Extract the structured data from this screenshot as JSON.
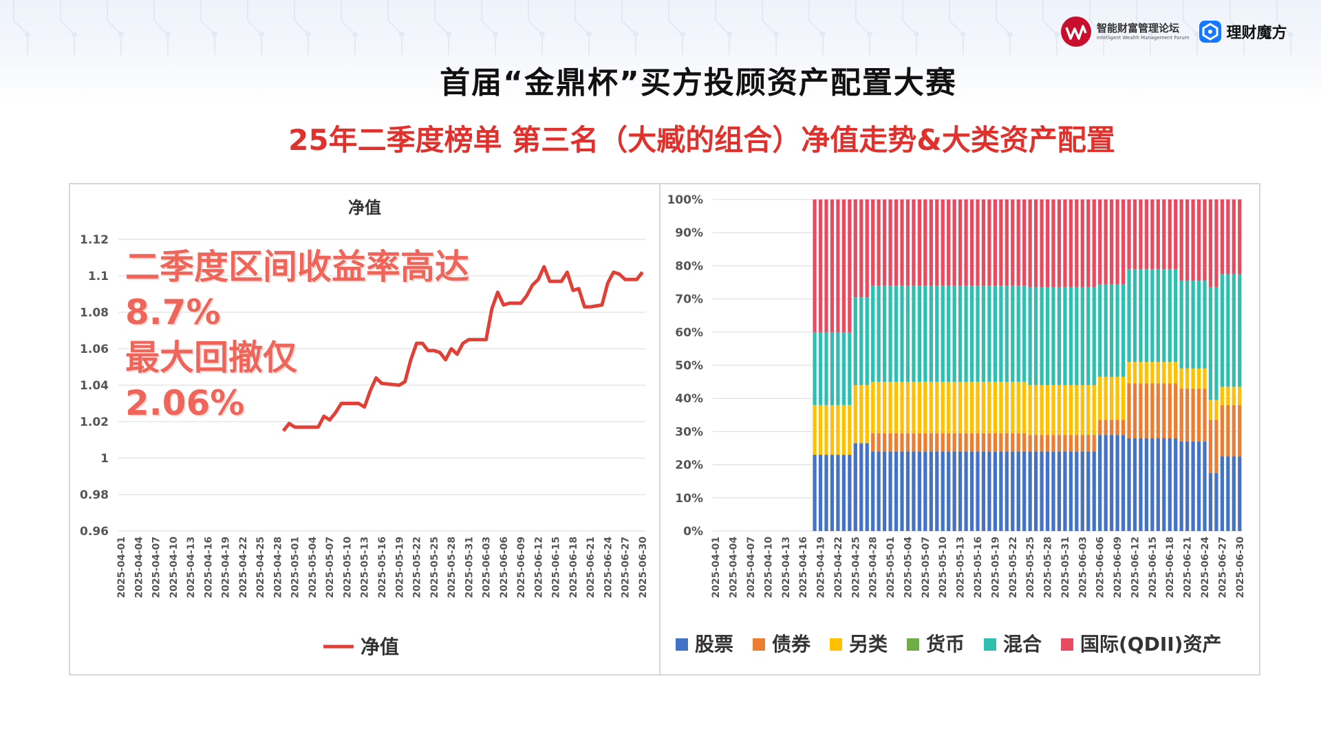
{
  "header": {
    "forum_name": "智能财富管理论坛",
    "forum_name_en": "Intelligent Wealth Management Forum",
    "partner_name": "理财魔方",
    "title": "首届“金鼎杯”买方投顾资产配置大赛",
    "subtitle": "25年二季度榜单 第三名（大臧的组合）净值走势&大类资产配置"
  },
  "colors": {
    "title": "#111111",
    "subtitle": "#e0312c",
    "nav_line": "#e04036",
    "overlay_text": "#f0655a",
    "stock": "#4472c4",
    "bond": "#ed7d31",
    "alternative": "#ffc000",
    "currency": "#70ad47",
    "mixed": "#2fbfb0",
    "qdii": "#e84a5f"
  },
  "overlay": {
    "line1": "二季度区间收益率高达",
    "line2": "8.7%",
    "line3": "最大回撤仅",
    "line4": "2.06%"
  },
  "chart_data": [
    {
      "type": "line",
      "title": "净值",
      "legend": [
        "净值"
      ],
      "legend_position": "bottom",
      "grid": true,
      "ylim": [
        0.96,
        1.12
      ],
      "yticks": [
        "1.12",
        "1.1",
        "1.08",
        "1.06",
        "1.04",
        "1.02",
        "1",
        "0.98",
        "0.96"
      ],
      "xticks": [
        "2025-04-01",
        "2025-04-04",
        "2025-04-07",
        "2025-04-10",
        "2025-04-13",
        "2025-04-16",
        "2025-04-19",
        "2025-04-22",
        "2025-04-25",
        "2025-04-28",
        "2025-05-01",
        "2025-05-04",
        "2025-05-07",
        "2025-05-10",
        "2025-05-13",
        "2025-05-16",
        "2025-05-19",
        "2025-05-22",
        "2025-05-25",
        "2025-05-28",
        "2025-05-31",
        "2025-06-03",
        "2025-06-06",
        "2025-06-09",
        "2025-06-12",
        "2025-06-15",
        "2025-06-18",
        "2025-06-21",
        "2025-06-24",
        "2025-06-27",
        "2025-06-30"
      ],
      "series": [
        {
          "name": "净值",
          "points": [
            [
              "2025-04-29",
              1.015
            ],
            [
              "2025-04-30",
              1.019
            ],
            [
              "2025-05-01",
              1.017
            ],
            [
              "2025-05-04",
              1.017
            ],
            [
              "2025-05-05",
              1.017
            ],
            [
              "2025-05-06",
              1.023
            ],
            [
              "2025-05-07",
              1.021
            ],
            [
              "2025-05-08",
              1.025
            ],
            [
              "2025-05-09",
              1.03
            ],
            [
              "2025-05-12",
              1.03
            ],
            [
              "2025-05-13",
              1.028
            ],
            [
              "2025-05-14",
              1.037
            ],
            [
              "2025-05-15",
              1.044
            ],
            [
              "2025-05-16",
              1.041
            ],
            [
              "2025-05-19",
              1.04
            ],
            [
              "2025-05-20",
              1.042
            ],
            [
              "2025-05-21",
              1.054
            ],
            [
              "2025-05-22",
              1.063
            ],
            [
              "2025-05-23",
              1.063
            ],
            [
              "2025-05-24",
              1.059
            ],
            [
              "2025-05-25",
              1.059
            ],
            [
              "2025-05-26",
              1.058
            ],
            [
              "2025-05-27",
              1.054
            ],
            [
              "2025-05-28",
              1.06
            ],
            [
              "2025-05-29",
              1.057
            ],
            [
              "2025-05-30",
              1.063
            ],
            [
              "2025-05-31",
              1.065
            ],
            [
              "2025-06-01",
              1.065
            ],
            [
              "2025-06-02",
              1.065
            ],
            [
              "2025-06-03",
              1.065
            ],
            [
              "2025-06-04",
              1.082
            ],
            [
              "2025-06-05",
              1.091
            ],
            [
              "2025-06-06",
              1.084
            ],
            [
              "2025-06-07",
              1.085
            ],
            [
              "2025-06-09",
              1.085
            ],
            [
              "2025-06-10",
              1.089
            ],
            [
              "2025-06-11",
              1.095
            ],
            [
              "2025-06-12",
              1.098
            ],
            [
              "2025-06-13",
              1.105
            ],
            [
              "2025-06-14",
              1.097
            ],
            [
              "2025-06-16",
              1.097
            ],
            [
              "2025-06-17",
              1.102
            ],
            [
              "2025-06-18",
              1.092
            ],
            [
              "2025-06-19",
              1.093
            ],
            [
              "2025-06-20",
              1.083
            ],
            [
              "2025-06-21",
              1.083
            ],
            [
              "2025-06-23",
              1.084
            ],
            [
              "2025-06-24",
              1.096
            ],
            [
              "2025-06-25",
              1.102
            ],
            [
              "2025-06-26",
              1.101
            ],
            [
              "2025-06-27",
              1.098
            ],
            [
              "2025-06-28",
              1.098
            ],
            [
              "2025-06-29",
              1.098
            ],
            [
              "2025-06-30",
              1.102
            ]
          ]
        }
      ]
    },
    {
      "type": "bar",
      "stacked": true,
      "ylim": [
        0,
        100
      ],
      "yticks": [
        "100%",
        "90%",
        "80%",
        "70%",
        "60%",
        "50%",
        "40%",
        "30%",
        "20%",
        "10%",
        "0%"
      ],
      "xticks": [
        "2025-04-01",
        "2025-04-04",
        "2025-04-07",
        "2025-04-10",
        "2025-04-13",
        "2025-04-16",
        "2025-04-19",
        "2025-04-22",
        "2025-04-25",
        "2025-04-28",
        "2025-05-01",
        "2025-05-04",
        "2025-05-07",
        "2025-05-10",
        "2025-05-13",
        "2025-05-16",
        "2025-05-19",
        "2025-05-22",
        "2025-05-25",
        "2025-05-28",
        "2025-05-31",
        "2025-06-03",
        "2025-06-06",
        "2025-06-09",
        "2025-06-12",
        "2025-06-15",
        "2025-06-18",
        "2025-06-21",
        "2025-06-24",
        "2025-06-27",
        "2025-06-30"
      ],
      "legend": [
        "股票",
        "债券",
        "另类",
        "货币",
        "混合",
        "国际(QDII)资产"
      ],
      "legend_position": "bottom",
      "segments": [
        {
          "from": "2025-04-18",
          "to": "2025-04-24",
          "values": [
            23,
            0,
            15,
            0,
            22,
            40
          ]
        },
        {
          "from": "2025-04-25",
          "to": "2025-04-27",
          "values": [
            26.5,
            0,
            17.5,
            0,
            26.5,
            29.5
          ]
        },
        {
          "from": "2025-04-28",
          "to": "2025-05-24",
          "values": [
            24,
            5.5,
            15.5,
            0,
            29,
            26
          ]
        },
        {
          "from": "2025-05-25",
          "to": "2025-06-05",
          "values": [
            24,
            5,
            15,
            0,
            29.5,
            26.5
          ]
        },
        {
          "from": "2025-06-06",
          "to": "2025-06-10",
          "values": [
            29,
            4.5,
            13,
            0,
            28,
            25.5
          ]
        },
        {
          "from": "2025-06-11",
          "to": "2025-06-19",
          "values": [
            28,
            16.5,
            6.5,
            0,
            28,
            21
          ]
        },
        {
          "from": "2025-06-20",
          "to": "2025-06-24",
          "values": [
            27,
            16,
            6,
            0,
            26.5,
            24.5
          ]
        },
        {
          "from": "2025-06-25",
          "to": "2025-06-26",
          "values": [
            17.5,
            16,
            6,
            0,
            34,
            26.5
          ]
        },
        {
          "from": "2025-06-27",
          "to": "2025-06-30",
          "values": [
            22.5,
            15.5,
            5.5,
            0,
            34,
            22.5
          ]
        }
      ]
    }
  ]
}
